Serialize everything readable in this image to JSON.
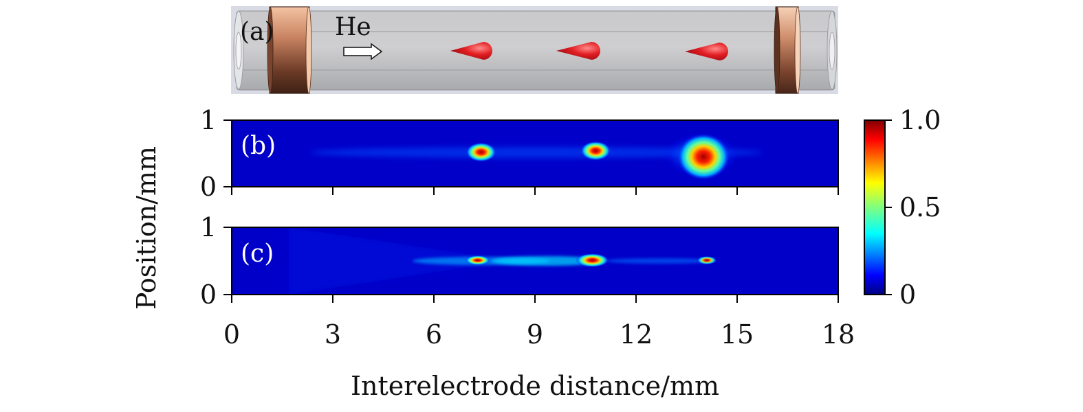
{
  "figure": {
    "panel_a": {
      "label": "(a)",
      "gas_label": "He",
      "plasma_bullets": 3
    }
  },
  "chart_data": [
    {
      "type": "heatmap",
      "panel_label": "(b)",
      "xlim": [
        0,
        18
      ],
      "ylim": [
        0,
        1
      ],
      "xticks": [
        "0",
        "3",
        "6",
        "9",
        "12",
        "15",
        "18"
      ],
      "yticks": [
        "0",
        "1"
      ],
      "xlabel": "Interelectrode distance/mm",
      "ylabel": "Position/mm",
      "features": [
        {
          "x": 7.4,
          "y": 0.52,
          "intensity": 1.0
        },
        {
          "x": 10.8,
          "y": 0.54,
          "intensity": 1.0
        },
        {
          "x": 14.0,
          "y": 0.45,
          "intensity": 1.0
        }
      ]
    },
    {
      "type": "heatmap",
      "panel_label": "(c)",
      "xlim": [
        0,
        18
      ],
      "ylim": [
        0,
        1
      ],
      "xticks": [
        "0",
        "3",
        "6",
        "9",
        "12",
        "15",
        "18"
      ],
      "yticks": [
        "0",
        "1"
      ],
      "features": [
        {
          "x": 7.3,
          "y": 0.51,
          "intensity": 1.0
        },
        {
          "x": 10.7,
          "y": 0.51,
          "intensity": 1.0
        },
        {
          "x": 14.1,
          "y": 0.51,
          "intensity": 0.9
        }
      ]
    }
  ],
  "colorbar": {
    "colormap": "jet",
    "range": [
      0,
      1.0
    ],
    "ticks": [
      "0",
      "0.5",
      "1.0"
    ],
    "colors": [
      "#00007f",
      "#0000ff",
      "#007fff",
      "#00ffff",
      "#7fff7f",
      "#ffff00",
      "#ff7f00",
      "#ff0000",
      "#7f0000"
    ]
  }
}
